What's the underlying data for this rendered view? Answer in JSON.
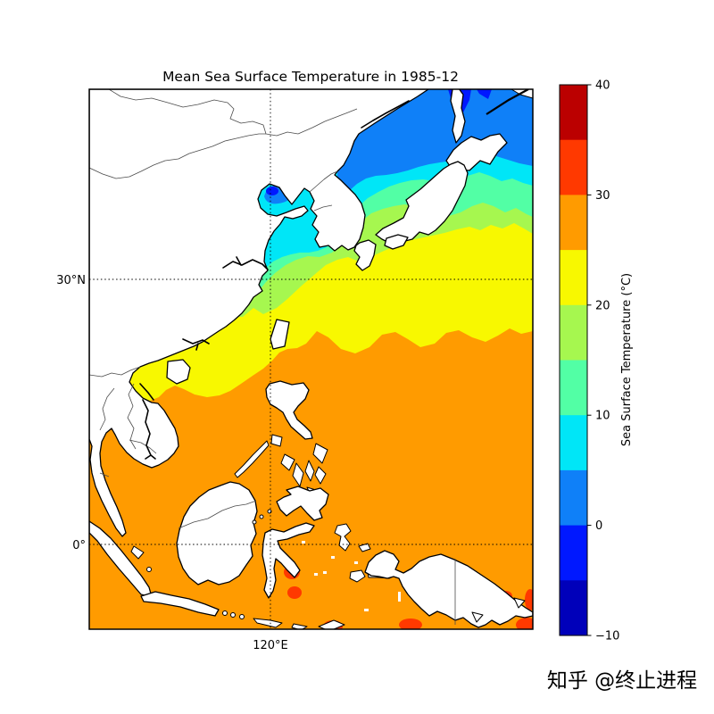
{
  "title": "Mean Sea Surface Temperature in 1985-12",
  "map": {
    "lat_label_30n": "30°N",
    "lat_label_eq": "0°",
    "lon_label_120e": "120°E"
  },
  "colorbar": {
    "label": "Sea Surface Temperature (°C)",
    "ticks_top_to_bottom": [
      "40",
      "30",
      "20",
      "10",
      "0",
      "−10"
    ],
    "colors_bottom_to_top": [
      "#0000BA",
      "#0018FF",
      "#0F80F8",
      "#00E6F7",
      "#52FFA5",
      "#A6F74F",
      "#F8F800",
      "#FF9B00",
      "#FF3900",
      "#BB0000"
    ]
  },
  "watermark": "知乎 @终止进程",
  "colors": {
    "background": "#ffffff",
    "land": "#ffffff",
    "coastline": "#000000",
    "country_border": "#4b4b4b",
    "gridline": "#000000",
    "watermark": "#c9c9c9",
    "band_neg10_neg5": "#0000BA",
    "band_neg5_0": "#0018FF",
    "band_0_5": "#0F80F8",
    "band_5_10": "#00E6F7",
    "band_10_15": "#52FFA5",
    "band_15_20": "#A6F74F",
    "band_20_25": "#F8F800",
    "band_25_30": "#FF9B00",
    "band_30_35": "#FF3900",
    "band_35_40": "#BB0000"
  },
  "chart_data": {
    "type": "heatmap",
    "subtype": "filled-contour-map",
    "title": "Mean Sea Surface Temperature in 1985-12",
    "colorbar": {
      "label": "Sea Surface Temperature (°C)",
      "min": -10,
      "max": 40,
      "tick_values": [
        -10,
        0,
        10,
        20,
        30,
        40
      ],
      "level_step_c": 5,
      "n_discrete_levels": 10,
      "colormap": "jet"
    },
    "map_extent": {
      "lon_min_e": 100,
      "lon_max_e": 150,
      "lat_min": -10,
      "lat_max": 51
    },
    "gridlines": {
      "latitudes_deg": [
        30,
        0
      ],
      "longitudes_deg": [
        120
      ],
      "style": "dotted"
    },
    "region": "East Asia and Maritime Southeast Asia (China, Korea, Japan, Philippines, Indonesia, New Guinea)",
    "bands": [
      {
        "range_c": "-5 to 0",
        "color": "#0018FF",
        "location": "Tatar Strait near Sakhalin, top edge"
      },
      {
        "range_c": "0 to 5",
        "color": "#0F80F8",
        "location": "northern Sea of Japan / Okhotsk side, north lobe of Bohai Sea"
      },
      {
        "range_c": "5 to 10",
        "color": "#00E6F7",
        "location": "Bohai Sea, Yellow Sea, central Sea of Japan"
      },
      {
        "range_c": "10 to 15",
        "color": "#52FFA5",
        "location": "Korea Strait, northwest Honshu coast"
      },
      {
        "range_c": "15 to 20",
        "color": "#A6F74F",
        "location": "East China Sea, band just south of Honshu"
      },
      {
        "range_c": "20 to 25",
        "color": "#F8F800",
        "location": "broad band around 30°N, south of Japan, South China coast, Gulf of Tonkin"
      },
      {
        "range_c": "25 to 30",
        "color": "#FF9B00",
        "location": "South China Sea, Philippine Sea, Indonesian seas (dominant tropical color)"
      },
      {
        "range_c": "30 to 35",
        "color": "#FF3900",
        "location": "small patches east of Sulawesi and along southern edge near New Guinea"
      }
    ]
  }
}
